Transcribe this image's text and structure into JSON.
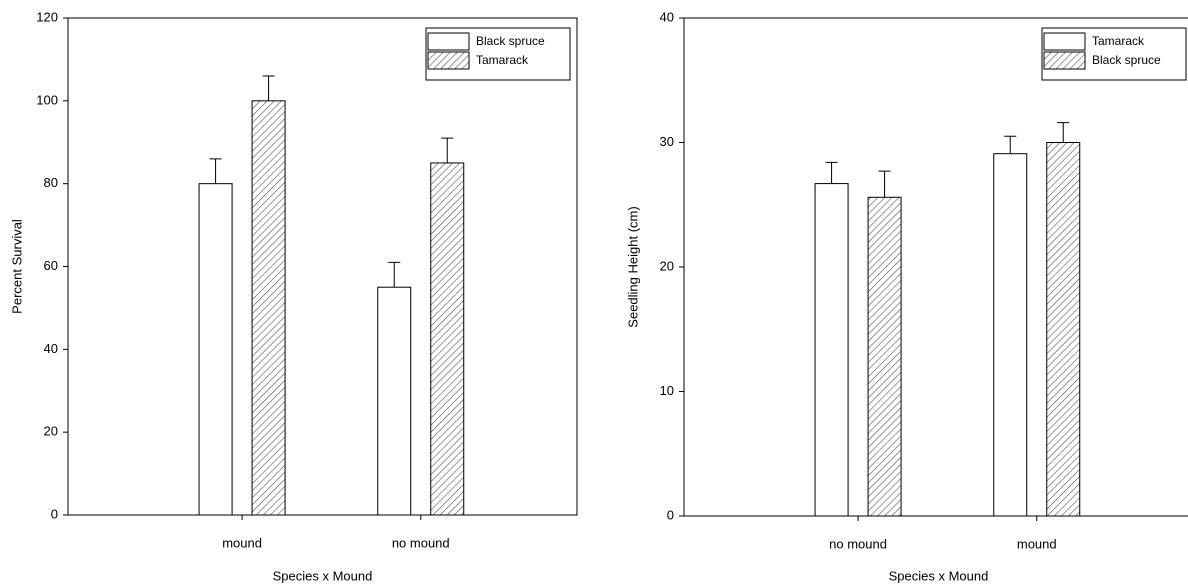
{
  "chart_data": [
    {
      "type": "bar",
      "ylabel": "Percent Survival",
      "xlabel": "Species x Mound",
      "categories": [
        "mound",
        "no mound"
      ],
      "series": [
        {
          "name": "Black spruce",
          "color": "#ffffff",
          "pattern": "none",
          "values": [
            80,
            55
          ],
          "errors": [
            6,
            6
          ]
        },
        {
          "name": "Tamarack",
          "color": "#ffffff",
          "pattern": "hatch",
          "values": [
            100,
            85
          ],
          "errors": [
            6,
            6
          ]
        }
      ],
      "ylim": [
        0,
        120
      ],
      "yticks": [
        0,
        20,
        40,
        60,
        80,
        100,
        120
      ],
      "legend": "upper right"
    },
    {
      "type": "bar",
      "ylabel": "Seedling Height (cm)",
      "xlabel": "Species x Mound",
      "categories": [
        "no mound",
        "mound"
      ],
      "series": [
        {
          "name": "Tamarack",
          "color": "#ffffff",
          "pattern": "none",
          "values": [
            26.7,
            29.1
          ],
          "errors": [
            1.7,
            1.4
          ]
        },
        {
          "name": "Black spruce",
          "color": "#ffffff",
          "pattern": "hatch",
          "values": [
            25.6,
            30.0
          ],
          "errors": [
            2.1,
            1.6
          ]
        }
      ],
      "ylim": [
        0,
        40
      ],
      "yticks": [
        0,
        10,
        20,
        30,
        40
      ],
      "legend": "upper right"
    }
  ]
}
